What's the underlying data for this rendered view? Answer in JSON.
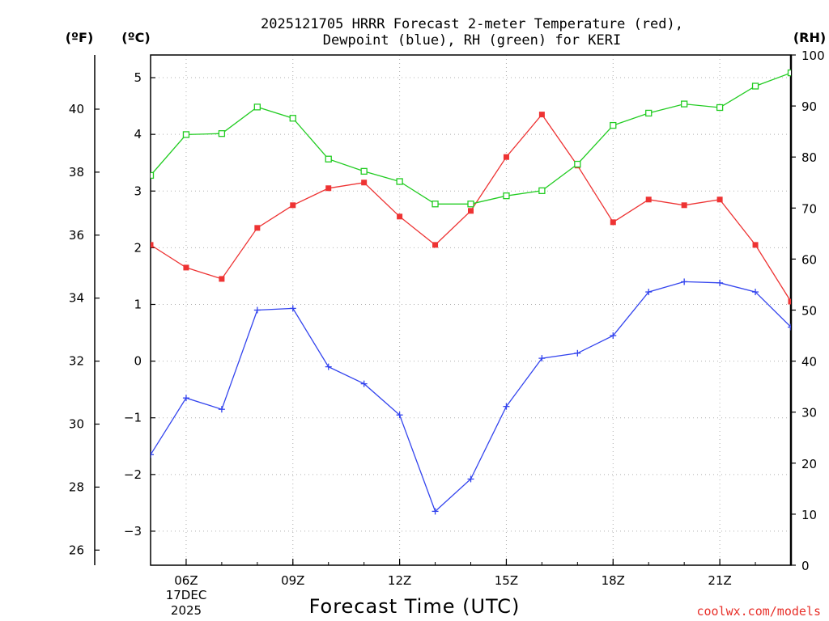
{
  "chart_data": {
    "type": "line",
    "title_line1": "2025121705 HRRR Forecast 2-meter Temperature (red),",
    "title_line2": "Dewpoint (blue), RH (green) for KERI",
    "xlabel": "Forecast Time (UTC)",
    "credit": "coolwx.com/models",
    "unit_f": "(ºF)",
    "unit_c": "(ºC)",
    "unit_rh": "(RH)",
    "x_hours": [
      5,
      6,
      7,
      8,
      9,
      10,
      11,
      12,
      13,
      14,
      15,
      16,
      17,
      18,
      19,
      20,
      21,
      22,
      23
    ],
    "x_range": [
      5,
      23
    ],
    "x_ticks": [
      {
        "hour": 6,
        "label": "06Z"
      },
      {
        "hour": 9,
        "label": "09Z"
      },
      {
        "hour": 12,
        "label": "12Z"
      },
      {
        "hour": 15,
        "label": "15Z"
      },
      {
        "hour": 18,
        "label": "18Z"
      },
      {
        "hour": 21,
        "label": "21Z"
      }
    ],
    "date_label_line1": "17DEC",
    "date_label_line2": "2025",
    "c_range": [
      -3.6,
      5.4
    ],
    "c_ticks": [
      -3,
      -2,
      -1,
      0,
      1,
      2,
      3,
      4,
      5
    ],
    "f_ticks": [
      26,
      28,
      30,
      32,
      34,
      36,
      38,
      40
    ],
    "rh_range": [
      0,
      100
    ],
    "rh_ticks": [
      0,
      10,
      20,
      30,
      40,
      50,
      60,
      70,
      80,
      90,
      100
    ],
    "series": [
      {
        "name": "2-meter Temperature",
        "axis": "C",
        "color": "#ee3333",
        "marker": "filled-square",
        "values": [
          2.05,
          1.65,
          1.45,
          2.35,
          2.75,
          3.05,
          3.15,
          2.55,
          2.05,
          2.65,
          3.6,
          4.35,
          3.45,
          2.45,
          2.85,
          2.75,
          2.85,
          2.05,
          1.05
        ]
      },
      {
        "name": "Dewpoint",
        "axis": "C",
        "color": "#3344ee",
        "marker": "plus",
        "values": [
          -1.65,
          -0.65,
          -0.85,
          0.9,
          0.93,
          -0.1,
          -0.4,
          -0.95,
          -2.65,
          -2.08,
          -0.8,
          0.05,
          0.14,
          0.45,
          1.22,
          1.4,
          1.38,
          1.22,
          0.6
        ]
      },
      {
        "name": "RH",
        "axis": "RH",
        "color": "#22cc22",
        "marker": "open-square",
        "values": [
          76.4,
          84.4,
          84.6,
          89.8,
          87.6,
          79.6,
          77.2,
          75.2,
          70.8,
          70.8,
          72.4,
          73.4,
          78.6,
          86.2,
          88.6,
          90.4,
          89.7,
          93.9,
          96.5
        ]
      }
    ]
  }
}
